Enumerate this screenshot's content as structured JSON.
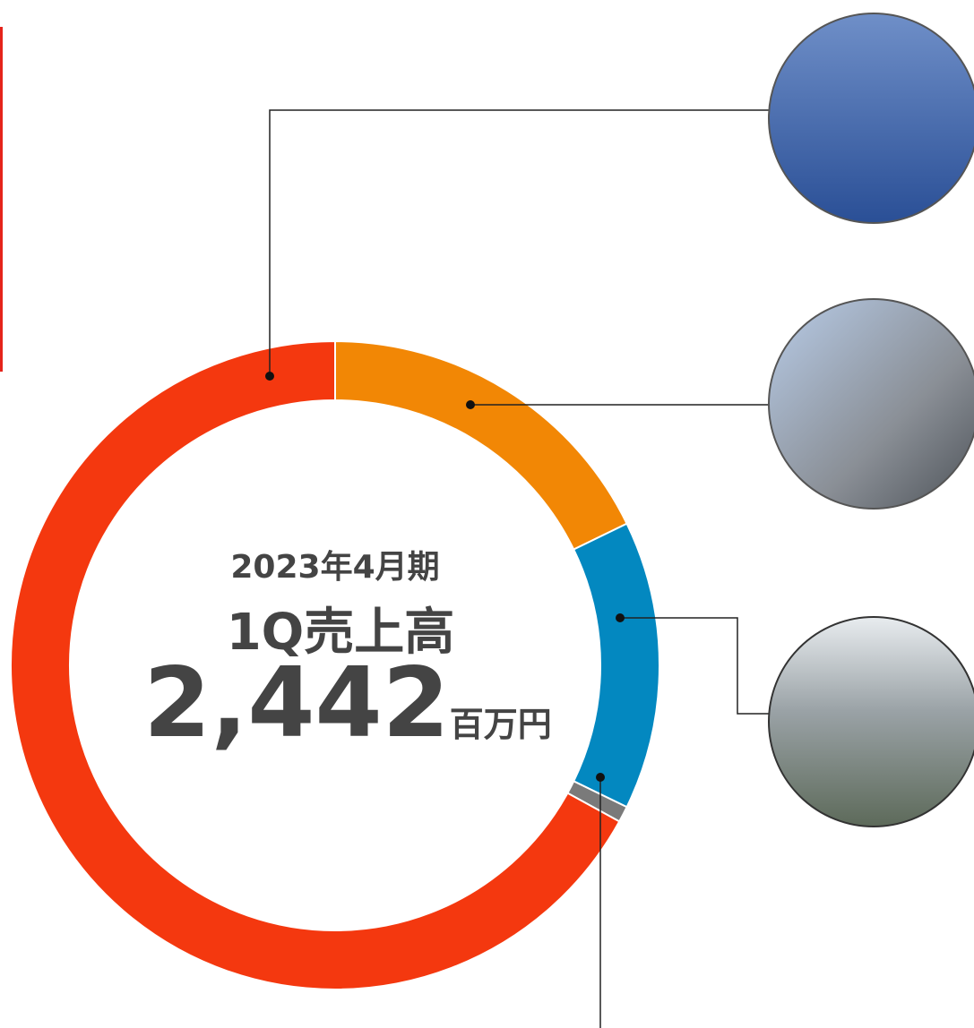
{
  "chart_data": {
    "type": "donut",
    "title": "2023年4月期",
    "subtitle": "1Q売上高",
    "total": {
      "value": 2442,
      "label": "2,442"
    },
    "unit": "百万円",
    "values": [
      17.8,
      14.4,
      0.8,
      67.0
    ],
    "colors": [
      "#f28705",
      "#0388c0",
      "#7a7a7a",
      "#f4380f"
    ],
    "start_angle": 0,
    "direction": "clockwise"
  }
}
